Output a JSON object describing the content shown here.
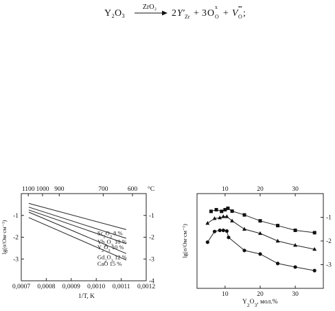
{
  "equation": {
    "reactant": "Y₂O₃",
    "arrow_label": "ZrO₂",
    "products": [
      {
        "coef": "2",
        "base": "Y′",
        "sub": "Zr",
        "sup": ""
      },
      {
        "coef": "3",
        "base": "O",
        "sub": "O",
        "sup": "x"
      },
      {
        "coef": "",
        "base": "V",
        "sub": "O",
        "sup": "••"
      }
    ],
    "trailing": ";"
  },
  "chart_data": [
    {
      "type": "line",
      "xlabel": "1/T, K",
      "ylabel": "lg(σ/Ом·см⁻¹)",
      "xlim": [
        0.0007,
        0.0012
      ],
      "ylim": [
        -4,
        0
      ],
      "x_ticks": [
        0.0007,
        0.0008,
        0.0009,
        0.001,
        0.0011,
        0.0012
      ],
      "x_tick_labels": [
        "0,0007",
        "0,0008",
        "0,0009",
        "0,0010",
        "0,0011",
        "0,0012"
      ],
      "y_ticks_left": [
        -3,
        -2,
        -1
      ],
      "y_tick_labels_left": [
        "-3",
        "-2",
        "-1"
      ],
      "y_ticks_right": [
        -4,
        -3,
        -2,
        -1
      ],
      "y_tick_labels_right": [
        "-4",
        "-3",
        "-2",
        "-1"
      ],
      "top_axis": {
        "unit": "°C",
        "ticks": [
          {
            "label": "1100",
            "x": 0.000728
          },
          {
            "label": "1000",
            "x": 0.000785
          },
          {
            "label": "900",
            "x": 0.000852
          },
          {
            "label": "700",
            "x": 0.001028
          },
          {
            "label": "600",
            "x": 0.001145
          }
        ]
      },
      "series": [
        {
          "name": "Sc₂O₃ 8 %",
          "x": [
            0.00073,
            0.00112
          ],
          "y": [
            -0.45,
            -1.65
          ]
        },
        {
          "name": "Yb₂O₃ 10 %",
          "x": [
            0.00073,
            0.00112
          ],
          "y": [
            -0.62,
            -2.05
          ]
        },
        {
          "name": "Y₂O₃ 10 %",
          "x": [
            0.00073,
            0.00112
          ],
          "y": [
            -0.75,
            -2.3
          ]
        },
        {
          "name": "Gd₂O₃ 12 %",
          "x": [
            0.00073,
            0.00112
          ],
          "y": [
            -0.85,
            -2.75
          ]
        },
        {
          "name": "CaO 15 %",
          "x": [
            0.00073,
            0.00112
          ],
          "y": [
            -1.1,
            -3.05
          ]
        }
      ],
      "grid": false
    },
    {
      "type": "line",
      "xlabel": "Y₂O₃, мол.%",
      "ylabel": "lg(σ/Ом·см⁻¹)",
      "xlim": [
        2,
        38
      ],
      "ylim": [
        -4,
        0
      ],
      "x_ticks_top": [
        10,
        20,
        30
      ],
      "x_tick_labels_top": [
        "10",
        "20",
        "30"
      ],
      "x_ticks_bottom": [
        10,
        20,
        30
      ],
      "x_tick_labels_bottom": [
        "10",
        "20",
        "30"
      ],
      "y_ticks_right": [
        -3,
        -2,
        -1
      ],
      "y_tick_labels_right": [
        "-3",
        "-2",
        "-1"
      ],
      "series": [
        {
          "marker": "square",
          "x": [
            6,
            7.5,
            9,
            10,
            10.8,
            12,
            15.5,
            20,
            25,
            30,
            35.5
          ],
          "y": [
            -0.75,
            -0.68,
            -0.75,
            -0.68,
            -0.62,
            -0.74,
            -0.9,
            -1.15,
            -1.35,
            -1.55,
            -1.65
          ]
        },
        {
          "marker": "triangle",
          "x": [
            5,
            7,
            8.5,
            9.5,
            10.5,
            12,
            15.5,
            20,
            25,
            30,
            35.5
          ],
          "y": [
            -1.25,
            -1.05,
            -1.02,
            -0.97,
            -0.97,
            -1.15,
            -1.5,
            -1.68,
            -2.0,
            -2.18,
            -2.35
          ]
        },
        {
          "marker": "circle",
          "x": [
            5,
            7,
            8.5,
            9.5,
            10.5,
            11,
            15.5,
            20,
            25,
            30,
            35.5
          ],
          "y": [
            -2.05,
            -1.6,
            -1.55,
            -1.55,
            -1.58,
            -1.85,
            -2.4,
            -2.55,
            -2.95,
            -3.1,
            -3.25
          ]
        }
      ],
      "grid": false
    }
  ]
}
